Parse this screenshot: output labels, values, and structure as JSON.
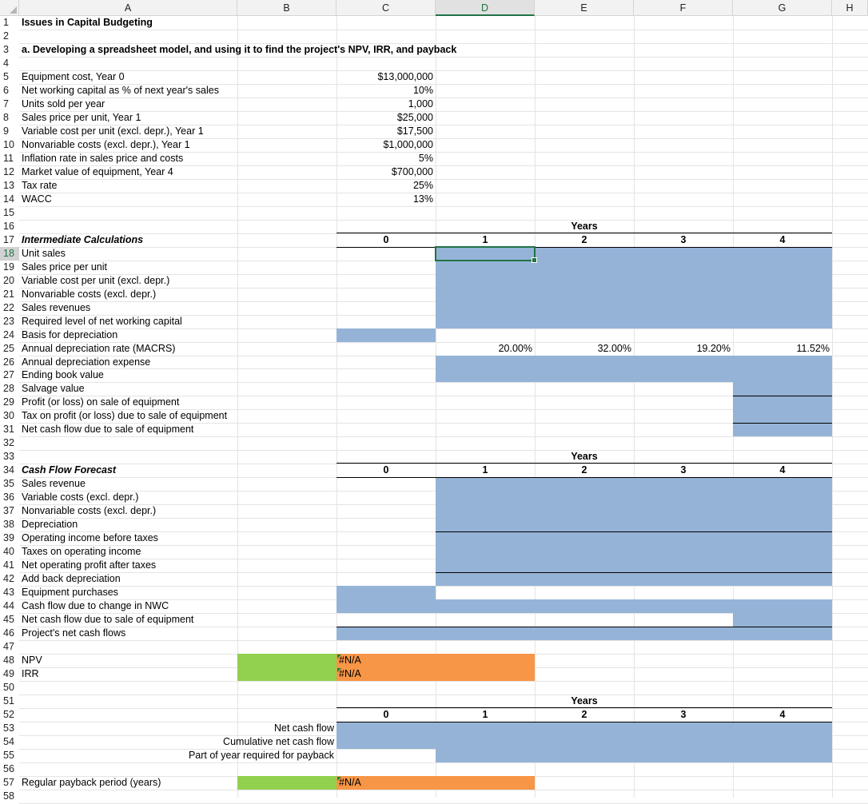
{
  "columns": [
    "A",
    "B",
    "C",
    "D",
    "E",
    "F",
    "G",
    "H"
  ],
  "selected_column": "D",
  "selected_row": 18,
  "title": "Issues in Capital Budgeting",
  "subtitle": "a. Developing a spreadsheet model, and using it to find the project's NPV, IRR, and payback",
  "inputs": [
    {
      "row": 5,
      "label": "Equipment cost, Year 0",
      "value": "$13,000,000"
    },
    {
      "row": 6,
      "label": "Net working capital as % of next year's sales",
      "value": "10%"
    },
    {
      "row": 7,
      "label": "Units sold per year",
      "value": "1,000"
    },
    {
      "row": 8,
      "label": "Sales price per unit, Year 1",
      "value": "$25,000"
    },
    {
      "row": 9,
      "label": "Variable cost per unit (excl. depr.), Year 1",
      "value": "$17,500"
    },
    {
      "row": 10,
      "label": "Nonvariable costs (excl. depr.), Year 1",
      "value": "$1,000,000"
    },
    {
      "row": 11,
      "label": "Inflation rate in sales price and costs",
      "value": "5%"
    },
    {
      "row": 12,
      "label": "Market value of equipment, Year 4",
      "value": "$700,000"
    },
    {
      "row": 13,
      "label": "Tax rate",
      "value": "25%"
    },
    {
      "row": 14,
      "label": "WACC",
      "value": "13%"
    }
  ],
  "years_label": "Years",
  "years": [
    "0",
    "1",
    "2",
    "3",
    "4"
  ],
  "intermediate": {
    "heading": "Intermediate Calculations",
    "rows": [
      {
        "row": 18,
        "label": "Unit sales"
      },
      {
        "row": 19,
        "label": "Sales price per unit"
      },
      {
        "row": 20,
        "label": "Variable cost per unit (excl. depr.)"
      },
      {
        "row": 21,
        "label": "Nonvariable costs (excl. depr.)"
      },
      {
        "row": 22,
        "label": "Sales revenues"
      },
      {
        "row": 23,
        "label": "Required level of net working capital"
      },
      {
        "row": 24,
        "label": "Basis for depreciation"
      },
      {
        "row": 25,
        "label": "Annual depreciation rate (MACRS)"
      },
      {
        "row": 26,
        "label": "Annual depreciation expense"
      },
      {
        "row": 27,
        "label": "Ending book value"
      },
      {
        "row": 28,
        "label": "Salvage value"
      },
      {
        "row": 29,
        "label": "Profit (or loss) on sale of equipment"
      },
      {
        "row": 30,
        "label": "Tax on profit (or loss) due to sale of equipment"
      },
      {
        "row": 31,
        "label": "Net cash flow due to sale of equipment"
      }
    ],
    "macrs": [
      "20.00%",
      "32.00%",
      "19.20%",
      "11.52%"
    ]
  },
  "forecast": {
    "heading": "Cash Flow Forecast",
    "rows": [
      {
        "row": 35,
        "label": "Sales revenue"
      },
      {
        "row": 36,
        "label": "Variable costs (excl. depr.)"
      },
      {
        "row": 37,
        "label": "Nonvariable costs (excl. depr.)"
      },
      {
        "row": 38,
        "label": "Depreciation"
      },
      {
        "row": 39,
        "label": "Operating income before taxes"
      },
      {
        "row": 40,
        "label": "Taxes on operating income"
      },
      {
        "row": 41,
        "label": "Net operating profit after taxes"
      },
      {
        "row": 42,
        "label": "Add back depreciation"
      },
      {
        "row": 43,
        "label": "Equipment purchases"
      },
      {
        "row": 44,
        "label": "Cash flow due to change in NWC"
      },
      {
        "row": 45,
        "label": "Net cash flow due to sale of equipment"
      },
      {
        "row": 46,
        "label": "Project's net cash flows"
      }
    ]
  },
  "results": [
    {
      "row": 48,
      "label": "NPV",
      "value": "#N/A"
    },
    {
      "row": 49,
      "label": "IRR",
      "value": "#N/A"
    }
  ],
  "payback": {
    "rows": [
      {
        "row": 53,
        "label": "Net cash flow"
      },
      {
        "row": 54,
        "label": "Cumulative net cash flow"
      },
      {
        "row": 55,
        "label": "Part of year required for payback"
      }
    ],
    "period_label": "Regular payback period (years)",
    "period_value": "#N/A"
  },
  "colors": {
    "blue_fill": "#95b3d7",
    "green_fill": "#92d050",
    "orange_fill": "#f79646",
    "select": "#217346"
  }
}
